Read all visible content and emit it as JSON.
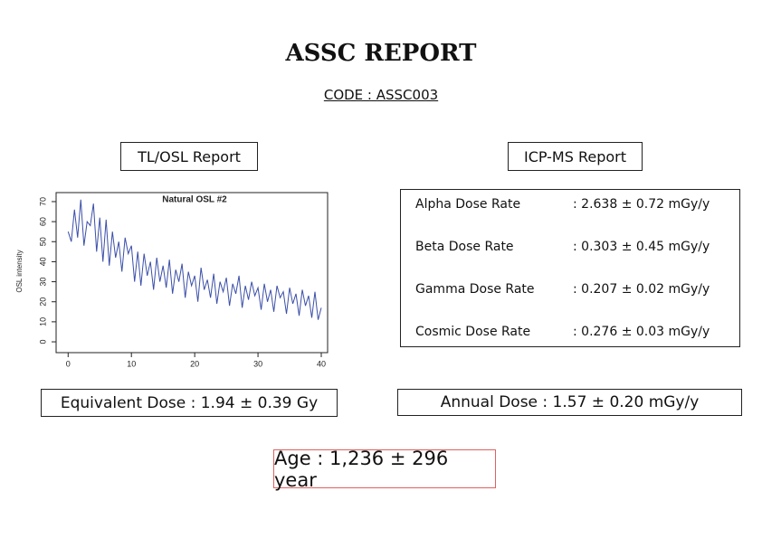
{
  "header": {
    "title": "ASSC REPORT",
    "code": "CODE : ASSC003"
  },
  "tl_osl": {
    "heading": "TL/OSL Report",
    "result": "Equivalent Dose : 1.94 ± 0.39 Gy"
  },
  "icp_ms": {
    "heading": "ICP-MS Report",
    "rows": [
      [
        "Alpha Dose Rate",
        ": 2.638 ± 0.72 mGy/y"
      ],
      [
        "Beta Dose Rate",
        ": 0.303 ± 0.45 mGy/y"
      ],
      [
        "Gamma Dose Rate",
        ": 0.207 ± 0.02 mGy/y"
      ],
      [
        "Cosmic Dose Rate",
        ": 0.276 ± 0.03 mGy/y"
      ]
    ],
    "result": "Annual Dose : 1.57 ± 0.20 mGy/y"
  },
  "age": "Age : 1,236 ± 296 year",
  "chart_data": {
    "type": "line",
    "title": "Natural OSL #2",
    "y_label": "OSL intensity",
    "color": "#3b4fa8",
    "x": [
      0,
      0.5,
      1,
      1.5,
      2,
      2.5,
      3,
      3.5,
      4,
      4.5,
      5,
      5.5,
      6,
      6.5,
      7,
      7.5,
      8,
      8.5,
      9,
      9.5,
      10,
      10.5,
      11,
      11.5,
      12,
      12.5,
      13,
      13.5,
      14,
      14.5,
      15,
      15.5,
      16,
      16.5,
      17,
      17.5,
      18,
      18.5,
      19,
      19.5,
      20,
      20.5,
      21,
      21.5,
      22,
      22.5,
      23,
      23.5,
      24,
      24.5,
      25,
      25.5,
      26,
      26.5,
      27,
      27.5,
      28,
      28.5,
      29,
      29.5,
      30,
      30.5,
      31,
      31.5,
      32,
      32.5,
      33,
      33.5,
      34,
      34.5,
      35,
      35.5,
      36,
      36.5,
      37,
      37.5,
      38,
      38.5,
      39,
      39.5,
      40
    ],
    "values": [
      55,
      50,
      66,
      52,
      71,
      48,
      60,
      58,
      69,
      45,
      62,
      40,
      61,
      38,
      55,
      42,
      50,
      35,
      52,
      44,
      48,
      30,
      45,
      28,
      44,
      33,
      40,
      26,
      42,
      30,
      38,
      27,
      41,
      24,
      36,
      30,
      39,
      22,
      35,
      28,
      33,
      20,
      37,
      26,
      31,
      22,
      34,
      19,
      30,
      25,
      32,
      18,
      29,
      24,
      33,
      17,
      28,
      21,
      30,
      23,
      27,
      16,
      29,
      20,
      26,
      15,
      28,
      22,
      25,
      14,
      27,
      19,
      24,
      13,
      26,
      18,
      23,
      12,
      25,
      11,
      17
    ],
    "xlim": [
      -1.9,
      41
    ],
    "ylim": [
      -5.4,
      74.5
    ],
    "xticks": [
      0,
      10,
      20,
      30,
      40
    ],
    "yticks": [
      0,
      10,
      20,
      30,
      40,
      50,
      60,
      70
    ]
  }
}
